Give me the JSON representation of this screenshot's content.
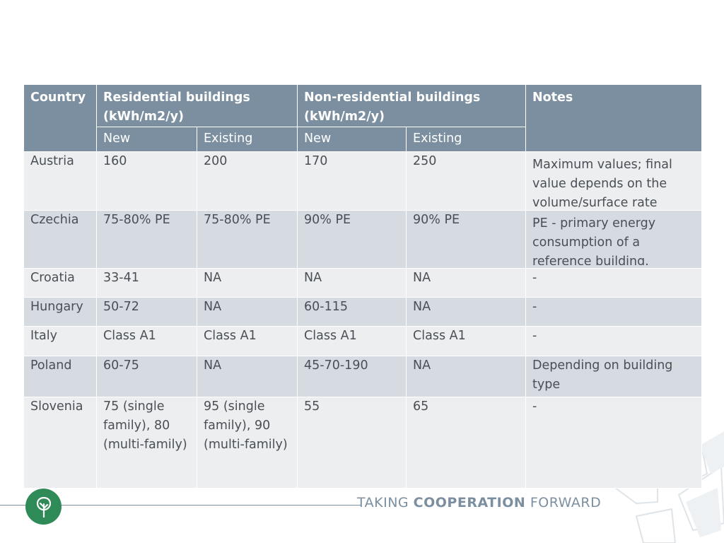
{
  "table": {
    "header": {
      "country": "Country",
      "residential": "Residential buildings (kWh/m2/y)",
      "non_residential": "Non-residential buildings (kWh/m2/y)",
      "notes": "Notes",
      "res_new": "New",
      "res_existing": "Existing",
      "nonres_new": "New",
      "nonres_existing": "Existing"
    },
    "rows": [
      {
        "country": "Austria",
        "res_new": "160",
        "res_existing": "200",
        "nonres_new": "170",
        "nonres_existing": "250",
        "notes": "Maximum values; final value depends on the volume/surface rate"
      },
      {
        "country": "Czechia",
        "res_new": "75-80% PE",
        "res_existing": "75-80% PE",
        "nonres_new": "90% PE",
        "nonres_existing": "90% PE",
        "notes": "PE - primary energy consumption of a reference building."
      },
      {
        "country": "Croatia",
        "res_new": "33-41",
        "res_existing": "NA",
        "nonres_new": "NA",
        "nonres_existing": "NA",
        "notes": "-"
      },
      {
        "country": "Hungary",
        "res_new": "50-72",
        "res_existing": "NA",
        "nonres_new": "60-115",
        "nonres_existing": "NA",
        "notes": "-"
      },
      {
        "country": "Italy",
        "res_new": "Class A1",
        "res_existing": "Class A1",
        "nonres_new": "Class A1",
        "nonres_existing": "Class A1",
        "notes": "-"
      },
      {
        "country": "Poland",
        "res_new": "60-75",
        "res_existing": "NA",
        "nonres_new": "45-70-190",
        "nonres_existing": "NA",
        "notes": "Depending on building type"
      },
      {
        "country": "Slovenia",
        "res_new": "75 (single family), 80 (multi-family)",
        "res_existing": "95 (single family), 90 (multi-family)",
        "nonres_new": "55",
        "nonres_existing": "65",
        "notes": "-"
      }
    ]
  },
  "footer": {
    "tagline_part1": "TAKING ",
    "tagline_part2": "COOPERATION",
    "tagline_part3": " FORWARD",
    "logo_icon": "tree-icon",
    "accent_color": "#2e8b57",
    "header_color": "#7b8fa0"
  }
}
